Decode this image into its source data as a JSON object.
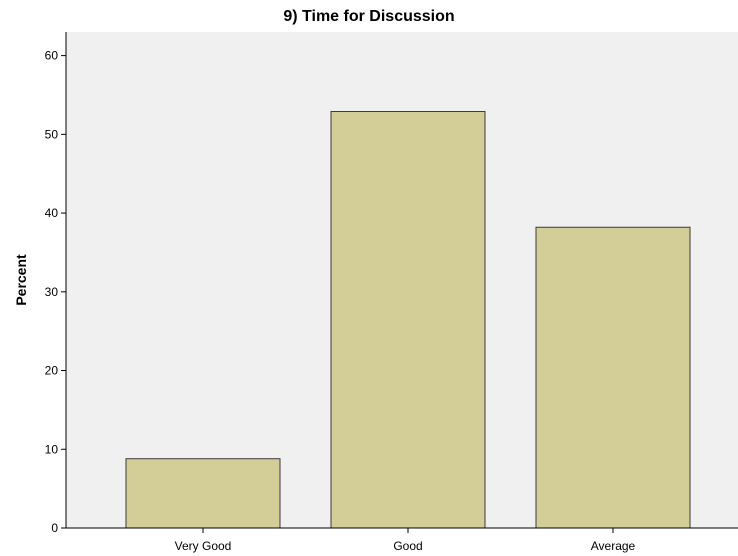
{
  "chart_data": {
    "type": "bar",
    "title": "9) Time for Discussion",
    "xlabel": "",
    "ylabel": "Percent",
    "categories": [
      "Very Good",
      "Good",
      "Average"
    ],
    "values": [
      8.8,
      52.9,
      38.2
    ],
    "ylim": [
      0,
      63
    ],
    "yticks": [
      0,
      10,
      20,
      30,
      40,
      50,
      60
    ],
    "grid": false,
    "legend": "none",
    "colors": {
      "bar_fill": "#d3ce98",
      "bar_stroke": "#3a3a3a",
      "plot_background": "#f0f0f0",
      "axis": "#000000"
    }
  }
}
